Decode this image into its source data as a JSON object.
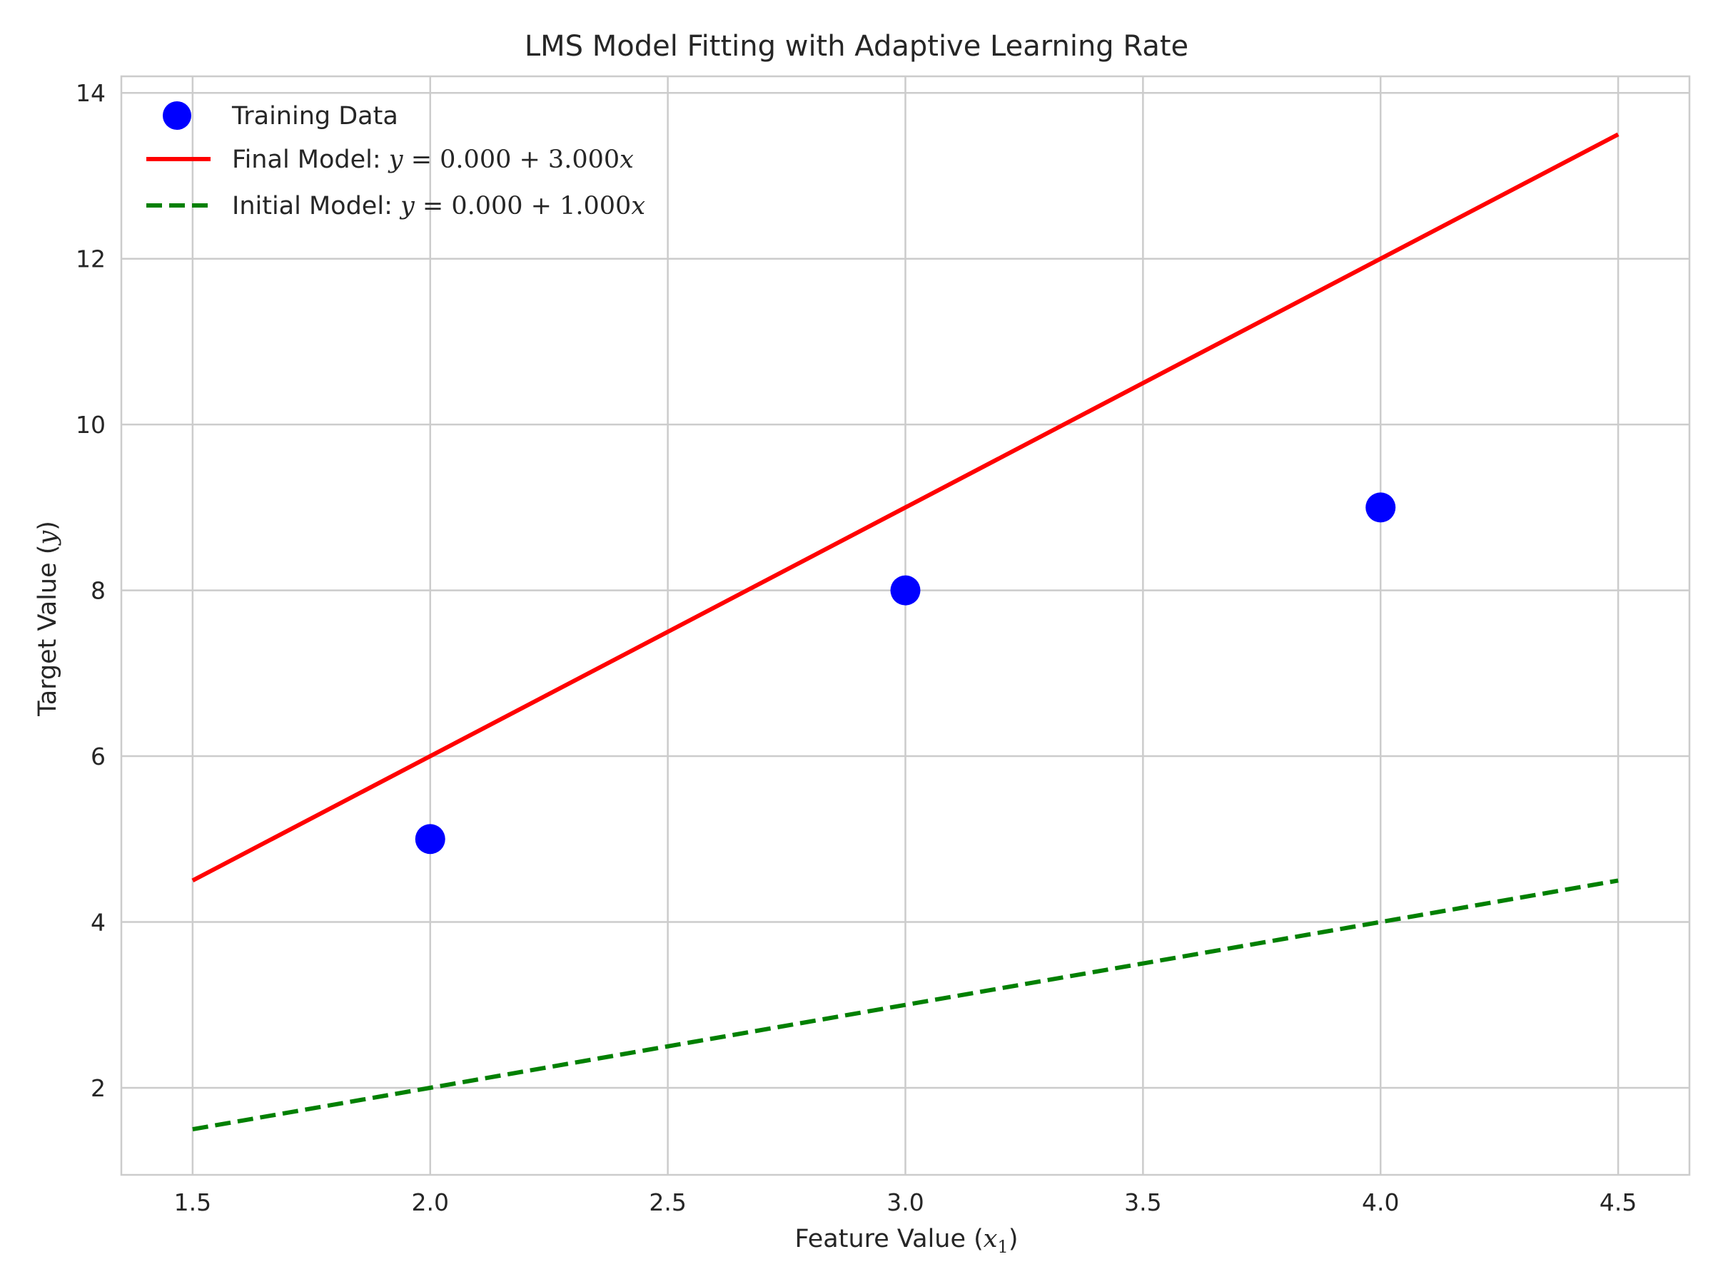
{
  "chart_data": {
    "type": "line",
    "title": "LMS Model Fitting with Adaptive Learning Rate",
    "xlabel": {
      "prefix": "Feature Value (",
      "var": "x",
      "sub": "1",
      "suffix": ")"
    },
    "ylabel": {
      "prefix": "Target Value (",
      "var": "y",
      "suffix": ")"
    },
    "xlim": [
      1.35,
      4.65
    ],
    "ylim": [
      0.95,
      14.2
    ],
    "x_ticks": [
      1.5,
      2.0,
      2.5,
      3.0,
      3.5,
      4.0,
      4.5
    ],
    "x_tick_labels": [
      "1.5",
      "2.0",
      "2.5",
      "3.0",
      "3.5",
      "4.0",
      "4.5"
    ],
    "y_ticks": [
      2,
      4,
      6,
      8,
      10,
      12,
      14
    ],
    "y_tick_labels": [
      "2",
      "4",
      "6",
      "8",
      "10",
      "12",
      "14"
    ],
    "grid": true,
    "legend_position": "upper-left",
    "series": [
      {
        "name": "Training Data",
        "kind": "scatter",
        "color": "#0000ff",
        "x": [
          2.0,
          3.0,
          4.0
        ],
        "y": [
          5,
          8,
          9
        ]
      },
      {
        "name": "Final Model",
        "equation": {
          "lhs": "y",
          "eq": " = ",
          "value": "0.000 + 3.000",
          "var": "x"
        },
        "kind": "line",
        "style": "solid",
        "color": "#ff0000",
        "x": [
          1.5,
          4.5
        ],
        "y": [
          4.5,
          13.5
        ]
      },
      {
        "name": "Initial Model",
        "equation": {
          "lhs": "y",
          "eq": " = ",
          "value": "0.000 + 1.000",
          "var": "x"
        },
        "kind": "line",
        "style": "dashed",
        "color": "#008000",
        "x": [
          1.5,
          4.5
        ],
        "y": [
          1.5,
          4.5
        ]
      }
    ]
  }
}
